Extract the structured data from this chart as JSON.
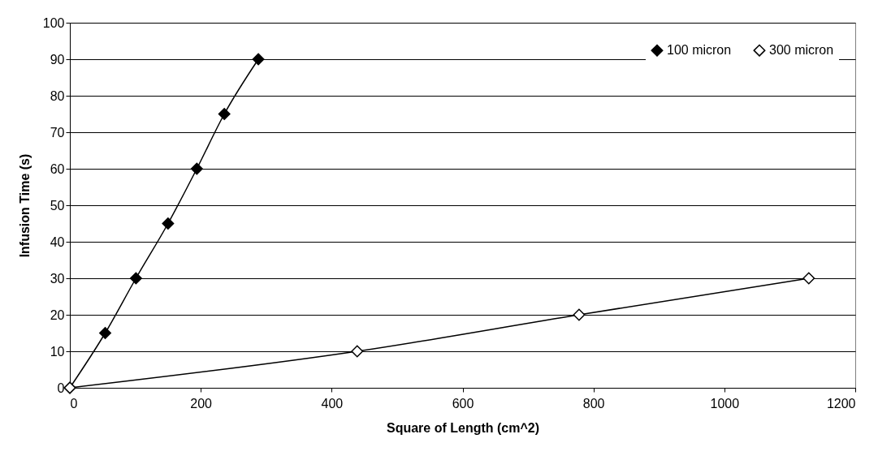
{
  "chart_data": {
    "type": "line",
    "xlabel": "Square of Length (cm^2)",
    "ylabel": "Infusion Time (s)",
    "xlim": [
      0,
      1200
    ],
    "xticks": [
      0,
      200,
      400,
      600,
      800,
      1000,
      1200
    ],
    "ylim": [
      0,
      100
    ],
    "yticks": [
      0,
      10,
      20,
      30,
      40,
      50,
      60,
      70,
      80,
      90,
      100
    ],
    "grid": "y",
    "legend": "top right",
    "marker": "diamond",
    "line_style": "solid",
    "series": [
      {
        "name": "100 micron",
        "color": "#000000",
        "x": [
          0,
          54,
          101,
          150,
          194,
          236,
          288
        ],
        "values": [
          0,
          15,
          30,
          45,
          60,
          75,
          90
        ]
      },
      {
        "name": "300 micron",
        "color": "#ffffff",
        "x": [
          0,
          439,
          778,
          1129
        ],
        "values": [
          0,
          10,
          20,
          30
        ]
      }
    ]
  }
}
